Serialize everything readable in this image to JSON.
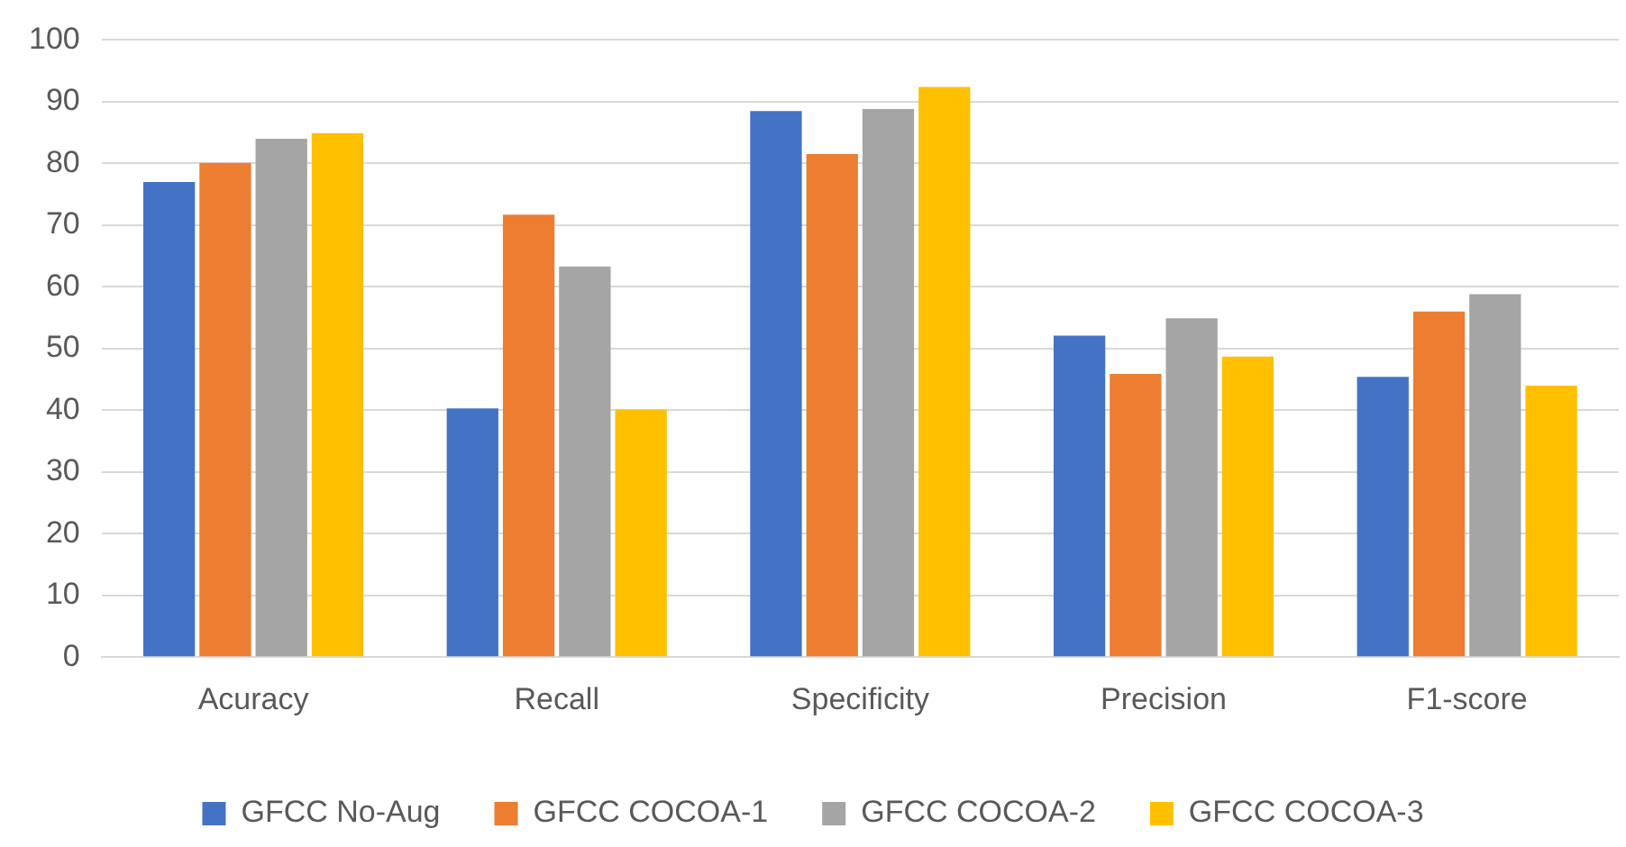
{
  "chart_data": {
    "type": "bar",
    "categories": [
      "Acuracy",
      "Recall",
      "Specificity",
      "Precision",
      "F1-score"
    ],
    "series": [
      {
        "name": "GFCC No-Aug",
        "color": "#4472c4",
        "values": [
          77.0,
          40.3,
          88.5,
          52.1,
          45.4
        ]
      },
      {
        "name": "GFCC COCOA-1",
        "color": "#ed7d31",
        "values": [
          80.1,
          71.7,
          81.5,
          45.9,
          56.0
        ]
      },
      {
        "name": "GFCC COCOA-2",
        "color": "#a5a5a5",
        "values": [
          84.0,
          63.3,
          88.8,
          54.9,
          58.8
        ]
      },
      {
        "name": "GFCC COCOA-3",
        "color": "#ffc000",
        "values": [
          84.9,
          40.1,
          92.4,
          48.7,
          44.0
        ]
      }
    ],
    "ylim": [
      0,
      100
    ],
    "yticks": [
      0,
      10,
      20,
      30,
      40,
      50,
      60,
      70,
      80,
      90,
      100
    ],
    "grid": "y",
    "legend": "bottom"
  }
}
